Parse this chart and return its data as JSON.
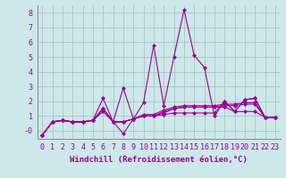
{
  "x": [
    0,
    1,
    2,
    3,
    4,
    5,
    6,
    7,
    8,
    9,
    10,
    11,
    12,
    13,
    14,
    15,
    16,
    17,
    18,
    19,
    20,
    21,
    22,
    23
  ],
  "series": [
    [
      -0.3,
      0.6,
      0.7,
      0.6,
      0.6,
      0.7,
      2.2,
      0.6,
      -0.2,
      0.8,
      1.9,
      5.8,
      1.7,
      5.0,
      8.2,
      5.1,
      4.3,
      1.0,
      2.0,
      1.3,
      2.1,
      2.2,
      0.9,
      0.9
    ],
    [
      -0.3,
      0.6,
      0.7,
      0.6,
      0.6,
      0.7,
      1.5,
      0.6,
      2.9,
      0.8,
      1.0,
      1.0,
      1.2,
      1.5,
      1.6,
      1.6,
      1.6,
      1.6,
      1.6,
      1.3,
      1.3,
      1.3,
      0.9,
      0.9
    ],
    [
      -0.3,
      0.6,
      0.7,
      0.6,
      0.6,
      0.7,
      1.5,
      0.6,
      0.6,
      0.8,
      1.1,
      1.1,
      1.4,
      1.6,
      1.7,
      1.7,
      1.7,
      1.7,
      1.8,
      1.8,
      1.9,
      1.9,
      0.9,
      0.9
    ],
    [
      -0.3,
      0.6,
      0.7,
      0.6,
      0.6,
      0.7,
      1.3,
      0.6,
      0.6,
      0.8,
      1.0,
      1.0,
      1.3,
      1.5,
      1.6,
      1.6,
      1.6,
      1.6,
      1.7,
      1.7,
      1.8,
      1.8,
      0.9,
      0.9
    ],
    [
      -0.3,
      0.6,
      0.7,
      0.6,
      0.6,
      0.7,
      1.5,
      0.6,
      0.6,
      0.8,
      1.0,
      1.0,
      1.1,
      1.2,
      1.2,
      1.2,
      1.2,
      1.2,
      2.0,
      1.3,
      2.1,
      2.2,
      0.9,
      0.9
    ]
  ],
  "line_color": "#990099",
  "marker": "D",
  "markersize": 2.0,
  "linewidth": 0.8,
  "background_color": "#cce8e8",
  "grid_color": "#aabbbb",
  "xlabel": "Windchill (Refroidissement éolien,°C)",
  "xlim": [
    -0.5,
    23.5
  ],
  "ylim": [
    -0.55,
    8.5
  ],
  "yticks": [
    0,
    1,
    2,
    3,
    4,
    5,
    6,
    7,
    8
  ],
  "ytick_labels": [
    "-0",
    "1",
    "2",
    "3",
    "4",
    "5",
    "6",
    "7",
    "8"
  ],
  "xticks": [
    0,
    1,
    2,
    3,
    4,
    5,
    6,
    7,
    8,
    9,
    10,
    11,
    12,
    13,
    14,
    15,
    16,
    17,
    18,
    19,
    20,
    21,
    22,
    23
  ],
  "xlabel_fontsize": 6.5,
  "tick_fontsize": 6.0
}
